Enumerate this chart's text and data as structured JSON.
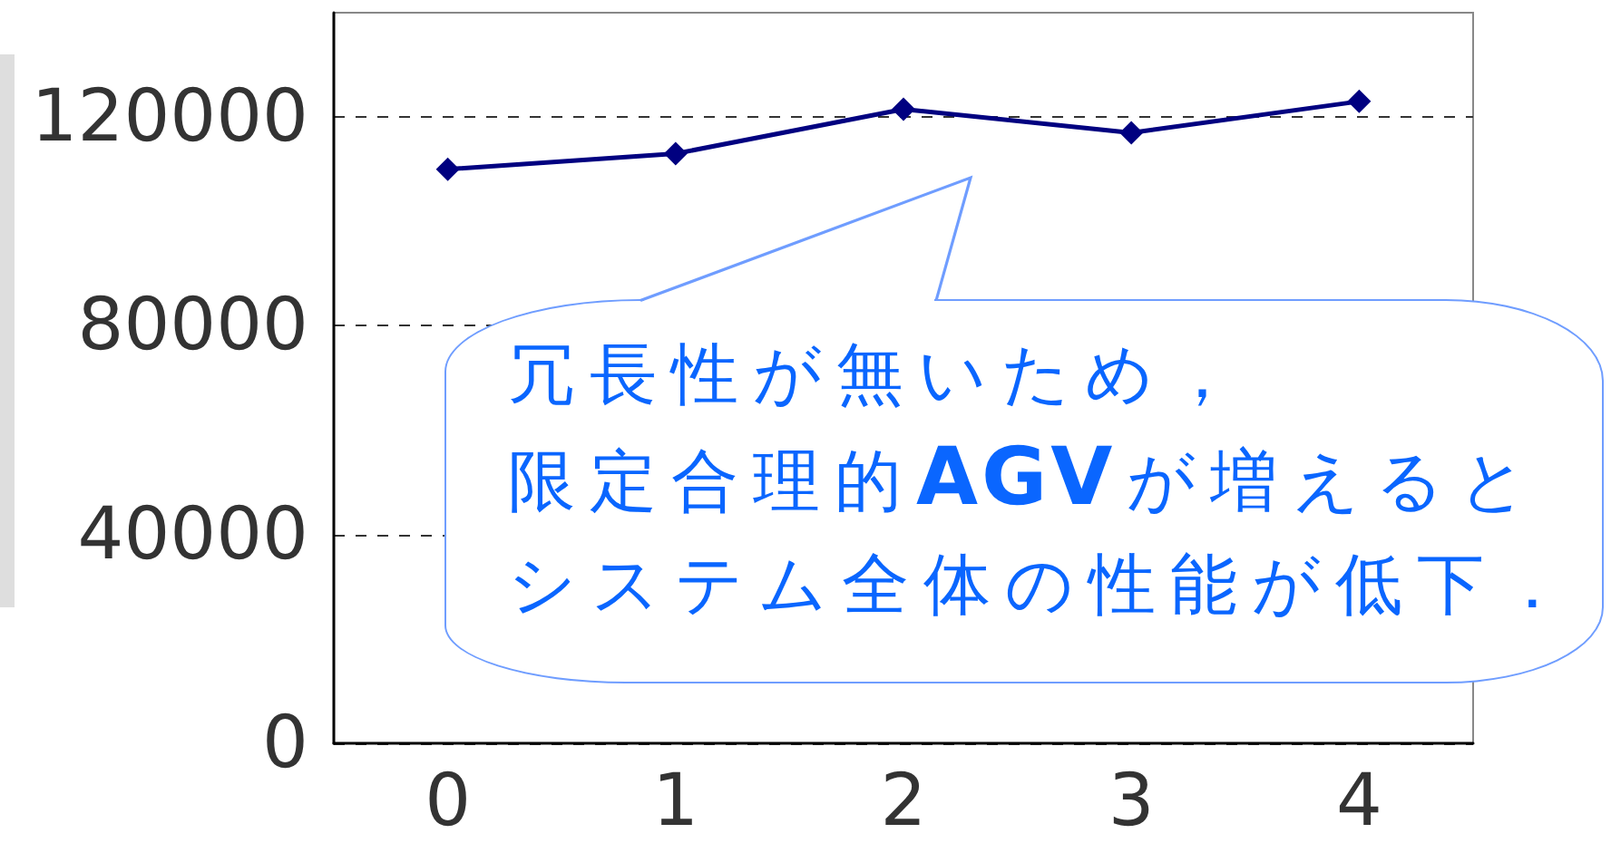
{
  "chart_data": {
    "type": "line",
    "categories": [
      "0",
      "1",
      "2",
      "3",
      "4"
    ],
    "series": [
      {
        "color": "#000080",
        "values": [
          110000,
          113000,
          121500,
          117000,
          123000
        ]
      }
    ],
    "ylim": [
      0,
      140000
    ],
    "yticks": [
      0,
      40000,
      80000,
      120000
    ],
    "grid": "y",
    "marker": "diamond",
    "line_style": "solid",
    "annotations": [
      "冗長性が無いため，限定合理的AGVが増えるとシステム全体の性能が低下．"
    ]
  }
}
